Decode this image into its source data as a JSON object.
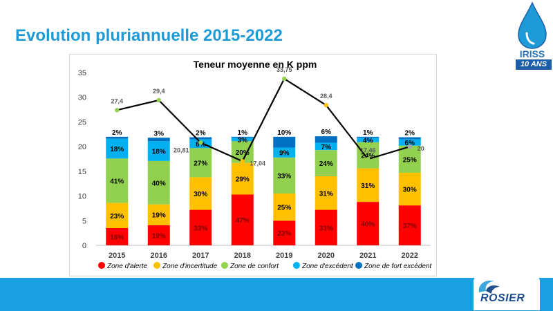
{
  "slide": {
    "title": "Evolution pluriannuelle 2015-2022"
  },
  "badge": {
    "name": "IRISS",
    "sub": "10 ANS"
  },
  "footer": {
    "logo": "ROSIER"
  },
  "colors": {
    "title": "#1e9bd7",
    "band": "#1ba1e2",
    "alerte": "#ff0000",
    "incertitude": "#ffc000",
    "confort": "#92d050",
    "excedent": "#00b0f0",
    "fort_excedent": "#0070c0",
    "line": "#000000"
  },
  "chart_data": {
    "type": "bar",
    "title": "Teneur moyenne en K ppm",
    "xlabel": "",
    "ylabel": "",
    "ylim": [
      0,
      35
    ],
    "yticks": [
      "0",
      "5",
      "10",
      "15",
      "20",
      "25",
      "30",
      "35"
    ],
    "grid": false,
    "legend_position": "bottom",
    "stacked": true,
    "categories": [
      "2015",
      "2016",
      "2017",
      "2018",
      "2019",
      "2020",
      "2021",
      "2022"
    ],
    "series": [
      {
        "name": "Zone d'alerte",
        "color": "#ff0000",
        "values": [
          3.5,
          4.1,
          7.2,
          10.3,
          5.0,
          7.2,
          8.8,
          8.1
        ],
        "labels": [
          "16%",
          "19%",
          "33%",
          "47%",
          "23%",
          "33%",
          "40%",
          "37%"
        ]
      },
      {
        "name": "Zone d'incertitude",
        "color": "#ffc000",
        "values": [
          5.1,
          4.2,
          6.6,
          6.4,
          5.5,
          6.8,
          6.8,
          6.6
        ],
        "labels": [
          "23%",
          "19%",
          "30%",
          "29%",
          "25%",
          "31%",
          "31%",
          "30%"
        ]
      },
      {
        "name": "Zone de confort",
        "color": "#92d050",
        "values": [
          9.0,
          8.8,
          5.9,
          4.4,
          7.3,
          5.3,
          5.3,
          5.5
        ],
        "labels": [
          "41%",
          "40%",
          "27%",
          "20%",
          "33%",
          "24%",
          "24%",
          "25%"
        ]
      },
      {
        "name": "Zone d'excédent",
        "color": "#00b0f0",
        "values": [
          4.0,
          4.0,
          1.8,
          0.7,
          2.0,
          1.5,
          0.9,
          1.3
        ],
        "labels": [
          "18%",
          "18%",
          "8%",
          "3%",
          "9%",
          "7%",
          "4%",
          "6%"
        ]
      },
      {
        "name": "Zone de fort excédent",
        "color": "#0070c0",
        "values": [
          0.4,
          0.7,
          0.4,
          0.2,
          2.2,
          1.3,
          0.2,
          0.4
        ],
        "labels": [
          "2%",
          "3%",
          "2%",
          "1%",
          "10%",
          "6%",
          "1%",
          "2%"
        ]
      }
    ],
    "line_series": {
      "values": [
        27.4,
        29.4,
        20.81,
        17.04,
        33.75,
        28.4,
        17.46,
        20
      ],
      "labels": [
        "27,4",
        "29,4",
        "20,81",
        "17,04",
        "33,75",
        "28,4",
        "17,46",
        "20"
      ],
      "point_colors": [
        "#92d050",
        "#92d050",
        "#92d050",
        "#ffc000",
        "#92d050",
        "#ffc000",
        "#92d050",
        "#a6a6a6"
      ]
    }
  }
}
